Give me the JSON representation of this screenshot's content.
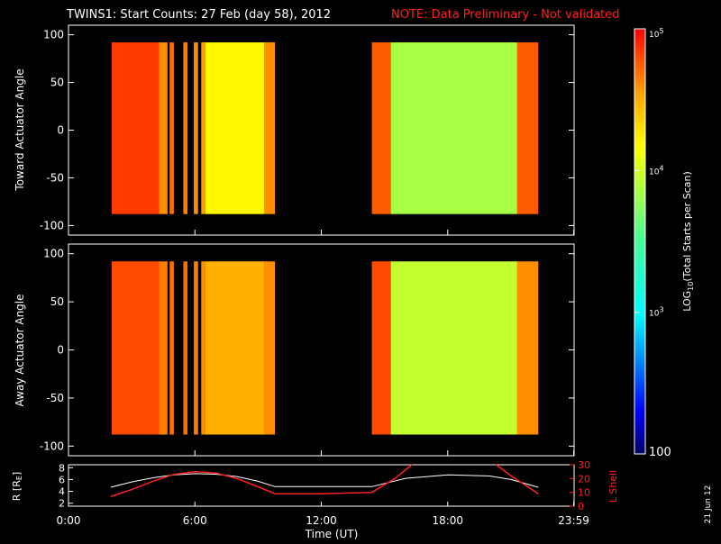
{
  "header": {
    "title": "TWINS1: Start Counts: 27 Feb (day  58), 2012",
    "note": "NOTE: Data Preliminary - Not validated"
  },
  "stamp": "21 Jun 12",
  "colorbar": {
    "label_prefix": "LOG",
    "label_sub": "10",
    "label_suffix": "(Total Starts per Scan)",
    "ticks": [
      {
        "value": 100,
        "text": "100"
      },
      {
        "value": 1000,
        "text": "10",
        "exp": "3"
      },
      {
        "value": 10000,
        "text": "10",
        "exp": "4"
      },
      {
        "value": 100000,
        "text": "10",
        "exp": "5"
      }
    ],
    "range": [
      100,
      100000
    ],
    "scale": "log"
  },
  "colors": {
    "background": "#000000",
    "axes": "#ffffff",
    "note": "#ff2020",
    "r_line": "#ffffff",
    "l_shell_line": "#ff2020"
  },
  "chart_data": [
    {
      "type": "heatmap",
      "name": "toward",
      "ylabel": "Toward Actuator Angle",
      "ylim": [
        -110,
        110
      ],
      "yticks": [
        -100,
        -50,
        0,
        50,
        100
      ],
      "xlim": [
        0,
        24
      ],
      "data_y_range": [
        -88,
        92
      ],
      "blocks": [
        {
          "start": 2.05,
          "end": 4.3,
          "log": 4.85
        },
        {
          "start": 4.3,
          "end": 4.7,
          "log": 4.6
        },
        {
          "start": 4.8,
          "end": 5.0,
          "log": 4.7
        },
        {
          "start": 5.45,
          "end": 5.65,
          "log": 4.65
        },
        {
          "start": 5.95,
          "end": 6.15,
          "log": 4.6
        },
        {
          "start": 6.3,
          "end": 6.5,
          "log": 4.55
        },
        {
          "start": 6.5,
          "end": 9.3,
          "log": 4.2
        },
        {
          "start": 9.3,
          "end": 9.8,
          "log": 4.6
        },
        {
          "start": 14.4,
          "end": 15.3,
          "log": 4.75
        },
        {
          "start": 15.3,
          "end": 21.3,
          "log": 3.85
        },
        {
          "start": 21.3,
          "end": 22.3,
          "log": 4.75
        }
      ]
    },
    {
      "type": "heatmap",
      "name": "away",
      "ylabel": "Away Actuator Angle",
      "ylim": [
        -110,
        110
      ],
      "yticks": [
        -100,
        -50,
        0,
        50,
        100
      ],
      "xlim": [
        0,
        24
      ],
      "data_y_range": [
        -88,
        92
      ],
      "blocks": [
        {
          "start": 2.05,
          "end": 4.3,
          "log": 4.8
        },
        {
          "start": 4.3,
          "end": 4.7,
          "log": 4.65
        },
        {
          "start": 4.8,
          "end": 5.0,
          "log": 4.7
        },
        {
          "start": 5.45,
          "end": 5.65,
          "log": 4.7
        },
        {
          "start": 5.95,
          "end": 6.15,
          "log": 4.65
        },
        {
          "start": 6.3,
          "end": 6.5,
          "log": 4.6
        },
        {
          "start": 6.5,
          "end": 9.3,
          "log": 4.5
        },
        {
          "start": 9.3,
          "end": 9.8,
          "log": 4.6
        },
        {
          "start": 14.4,
          "end": 15.3,
          "log": 4.8
        },
        {
          "start": 15.3,
          "end": 21.3,
          "log": 3.95
        },
        {
          "start": 21.3,
          "end": 22.3,
          "log": 4.6
        }
      ]
    },
    {
      "type": "line",
      "name": "orbit",
      "xlabel": "Time (UT)",
      "xticks": [
        {
          "value": 0,
          "text": "0:00"
        },
        {
          "value": 6,
          "text": "6:00"
        },
        {
          "value": 12,
          "text": "12:00"
        },
        {
          "value": 18,
          "text": "18:00"
        },
        {
          "value": 23.983,
          "text": "23:59"
        }
      ],
      "xlim": [
        0,
        24
      ],
      "ylabel_left": "R [R",
      "ylabel_left_sub": "E",
      "ylabel_left_end": "]",
      "ylim_left": [
        1.5,
        8.5
      ],
      "yticks_left": [
        2,
        4,
        6,
        8
      ],
      "ylabel_right": "L Shell",
      "ylim_right": [
        0,
        30
      ],
      "yticks_right": [
        0,
        10,
        20,
        30
      ],
      "series": [
        {
          "axis": "left",
          "x": [
            2.0,
            3.0,
            4.0,
            5.0,
            6.0,
            7.0,
            8.0,
            9.0,
            9.8,
            12.0,
            14.4,
            16.0,
            18.0,
            20.0,
            21.0,
            22.3
          ],
          "y": [
            4.7,
            5.6,
            6.3,
            6.8,
            7.0,
            6.9,
            6.5,
            5.7,
            4.8,
            4.8,
            4.8,
            6.2,
            6.8,
            6.6,
            6.0,
            4.7
          ]
        },
        {
          "axis": "right",
          "x": [
            2.0,
            3.0,
            4.0,
            5.0,
            6.0,
            7.0,
            8.0,
            9.0,
            9.8,
            12.0,
            14.4,
            15.5,
            16.3
          ],
          "y": [
            7,
            12,
            18,
            23,
            25,
            24,
            20,
            14,
            9,
            9,
            10,
            20,
            30
          ]
        },
        {
          "axis": "right",
          "x": [
            20.3,
            21.0,
            22.0,
            22.3
          ],
          "y": [
            30,
            22,
            12,
            9
          ]
        }
      ]
    }
  ]
}
